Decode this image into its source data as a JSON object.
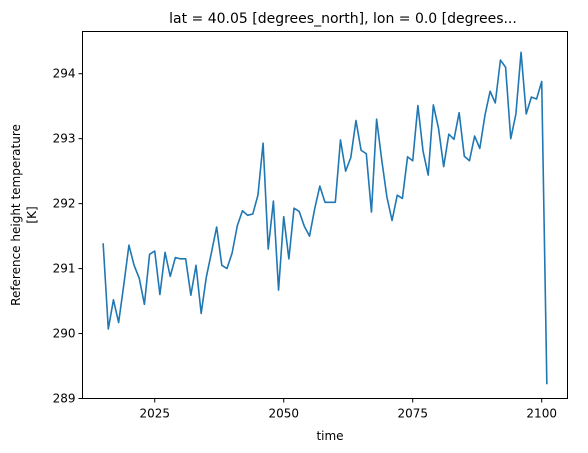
{
  "chart_data": {
    "type": "line",
    "title": "lat = 40.05 [degrees_north], lon = 0.0 [degrees...",
    "xlabel": "time",
    "ylabel_line1": "Reference height temperature",
    "ylabel_line2": "[K]",
    "xlim": [
      2011,
      2105
    ],
    "ylim": [
      289.0,
      294.65
    ],
    "x_ticks": [
      2025,
      2050,
      2075,
      2100
    ],
    "x_tick_labels": [
      "2025",
      "2050",
      "2075",
      "2100"
    ],
    "y_ticks": [
      289,
      290,
      291,
      292,
      293,
      294
    ],
    "y_tick_labels": [
      "289",
      "290",
      "291",
      "292",
      "293",
      "294"
    ],
    "grid": false,
    "line_color": "#1f77b4",
    "series": [
      {
        "x": [
          2015,
          2016,
          2017,
          2018,
          2019,
          2020,
          2021,
          2022,
          2023,
          2024,
          2025,
          2026,
          2027,
          2028,
          2029,
          2030,
          2031,
          2032,
          2033,
          2034,
          2035,
          2036,
          2037,
          2038,
          2039,
          2040,
          2041,
          2042,
          2043,
          2044,
          2045,
          2046,
          2047,
          2048,
          2049,
          2050,
          2051,
          2052,
          2053,
          2054,
          2055,
          2056,
          2057,
          2058,
          2059,
          2060,
          2061,
          2062,
          2063,
          2064,
          2065,
          2066,
          2067,
          2068,
          2069,
          2070,
          2071,
          2072,
          2073,
          2074,
          2075,
          2076,
          2077,
          2078,
          2079,
          2080,
          2081,
          2082,
          2083,
          2084,
          2085,
          2086,
          2087,
          2088,
          2089,
          2090,
          2091,
          2092,
          2093,
          2094,
          2095,
          2096,
          2097,
          2098,
          2099,
          2100,
          2101
        ],
        "y": [
          291.39,
          290.07,
          290.52,
          290.17,
          290.75,
          291.36,
          291.05,
          290.85,
          290.45,
          291.22,
          291.27,
          290.6,
          291.25,
          290.88,
          291.17,
          291.15,
          291.15,
          290.59,
          291.05,
          290.31,
          290.87,
          291.25,
          291.64,
          291.05,
          291.0,
          291.24,
          291.66,
          291.89,
          291.82,
          291.84,
          292.13,
          292.93,
          291.3,
          292.04,
          290.67,
          291.8,
          291.15,
          291.93,
          291.88,
          291.65,
          291.5,
          291.92,
          292.27,
          292.02,
          292.02,
          292.02,
          292.98,
          292.5,
          292.71,
          293.28,
          292.82,
          292.77,
          291.87,
          293.3,
          292.67,
          292.1,
          291.74,
          292.13,
          292.08,
          292.72,
          292.66,
          293.51,
          292.81,
          292.44,
          293.52,
          293.16,
          292.57,
          293.07,
          292.99,
          293.4,
          292.73,
          292.66,
          293.04,
          292.85,
          293.36,
          293.73,
          293.55,
          294.21,
          294.1,
          293.0,
          293.38,
          294.33,
          293.38,
          293.64,
          293.61,
          293.88,
          289.22
        ]
      }
    ]
  }
}
